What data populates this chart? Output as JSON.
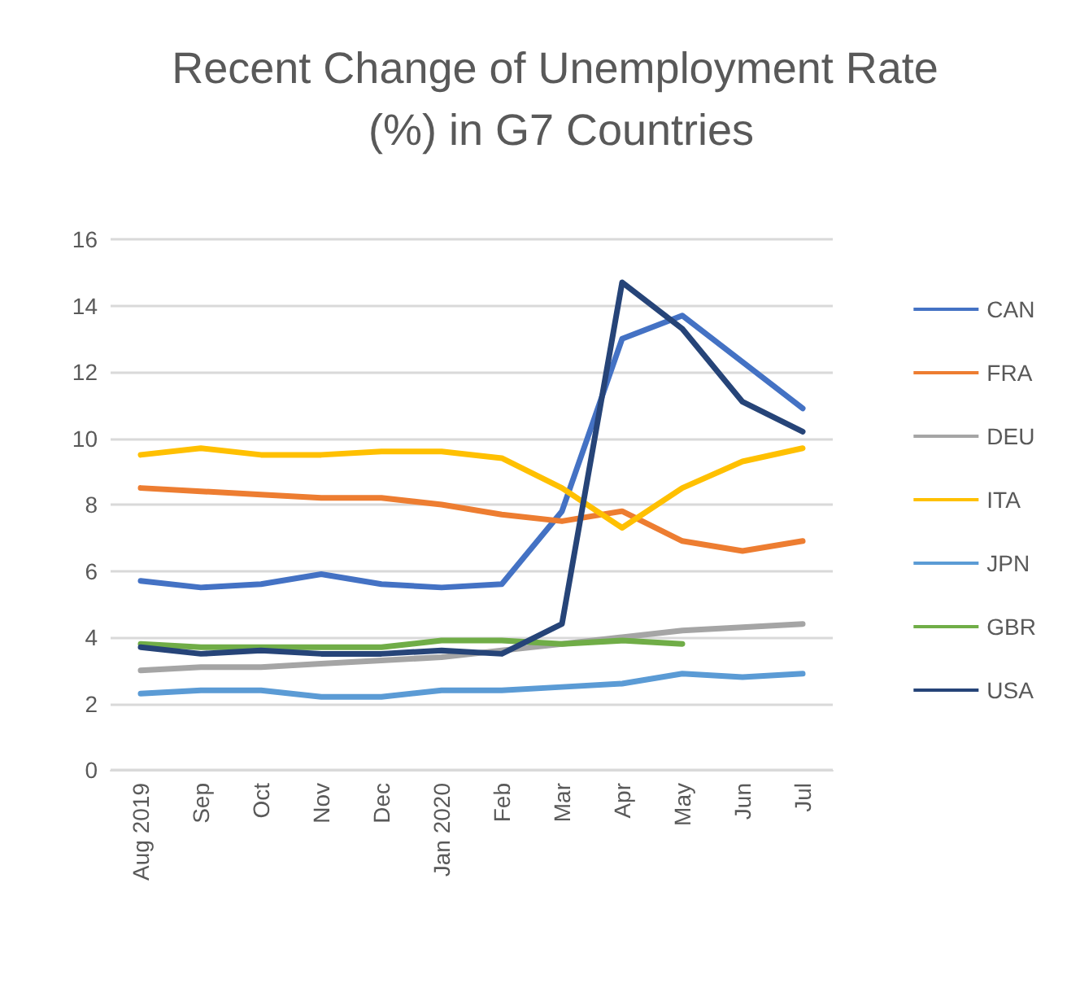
{
  "chart_data": {
    "type": "line",
    "title": "Recent Change of Unemployment Rate (%) in G7 Countries",
    "categories": [
      "Aug 2019",
      "Sep",
      "Oct",
      "Nov",
      "Dec",
      "Jan 2020",
      "Feb",
      "Mar",
      "Apr",
      "May",
      "Jun",
      "Jul"
    ],
    "series": [
      {
        "name": "CAN",
        "color": "#4472c4",
        "values": [
          5.7,
          5.5,
          5.6,
          5.9,
          5.6,
          5.5,
          5.6,
          7.8,
          13.0,
          13.7,
          12.3,
          10.9
        ]
      },
      {
        "name": "FRA",
        "color": "#ed7d31",
        "values": [
          8.5,
          8.4,
          8.3,
          8.2,
          8.2,
          8.0,
          7.7,
          7.5,
          7.8,
          6.9,
          6.6,
          6.9
        ]
      },
      {
        "name": "DEU",
        "color": "#a5a5a5",
        "values": [
          3.0,
          3.1,
          3.1,
          3.2,
          3.3,
          3.4,
          3.6,
          3.8,
          4.0,
          4.2,
          4.3,
          4.4
        ]
      },
      {
        "name": "ITA",
        "color": "#ffc000",
        "values": [
          9.5,
          9.7,
          9.5,
          9.5,
          9.6,
          9.6,
          9.4,
          8.5,
          7.3,
          8.5,
          9.3,
          9.7
        ]
      },
      {
        "name": "JPN",
        "color": "#5b9bd5",
        "values": [
          2.3,
          2.4,
          2.4,
          2.2,
          2.2,
          2.4,
          2.4,
          2.5,
          2.6,
          2.9,
          2.8,
          2.9
        ]
      },
      {
        "name": "GBR",
        "color": "#70ad47",
        "values": [
          3.8,
          3.7,
          3.7,
          3.7,
          3.7,
          3.9,
          3.9,
          3.8,
          3.9,
          3.8,
          null,
          null
        ]
      },
      {
        "name": "USA",
        "color": "#264478",
        "values": [
          3.7,
          3.5,
          3.6,
          3.5,
          3.5,
          3.6,
          3.5,
          4.4,
          14.7,
          13.3,
          11.1,
          10.2
        ]
      }
    ],
    "ylim": [
      0,
      16
    ],
    "yticks": [
      0,
      2,
      4,
      6,
      8,
      10,
      12,
      14,
      16
    ],
    "grid": "y",
    "legend": "right",
    "marker": "none",
    "line_style": "solid"
  }
}
